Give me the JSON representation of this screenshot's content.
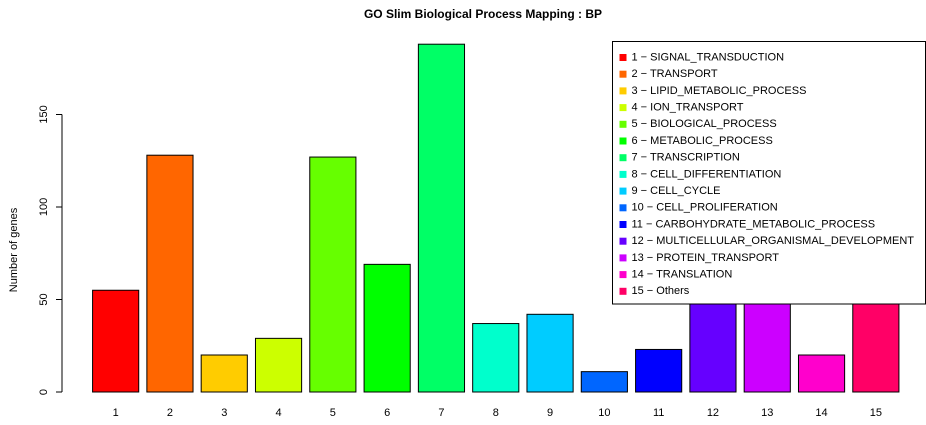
{
  "chart_data": {
    "type": "bar",
    "title": "GO Slim Biological Process Mapping  : BP",
    "y_label": "Number of genes",
    "categories": [
      "1",
      "2",
      "3",
      "4",
      "5",
      "6",
      "7",
      "8",
      "9",
      "10",
      "11",
      "12",
      "13",
      "14",
      "15"
    ],
    "values": [
      55,
      128,
      20,
      29,
      127,
      69,
      188,
      37,
      42,
      11,
      23,
      50,
      55,
      20,
      59
    ],
    "colors": [
      "#FF0000",
      "#FF6600",
      "#FFCC00",
      "#CCFF00",
      "#66FF00",
      "#00FF00",
      "#00FF66",
      "#00FFCC",
      "#00CCFF",
      "#0066FF",
      "#0000FF",
      "#6600FF",
      "#CC00FF",
      "#FF00CC",
      "#FF0066"
    ],
    "legend_labels": [
      "1 − SIGNAL_TRANSDUCTION",
      "2 − TRANSPORT",
      "3 − LIPID_METABOLIC_PROCESS",
      "4 − ION_TRANSPORT",
      "5 − BIOLOGICAL_PROCESS",
      "6 − METABOLIC_PROCESS",
      "7 − TRANSCRIPTION",
      "8 − CELL_DIFFERENTIATION",
      "9 − CELL_CYCLE",
      "10 − CELL_PROLIFERATION",
      "11 − CARBOHYDRATE_METABOLIC_PROCESS",
      "12 − MULTICELLULAR_ORGANISMAL_DEVELOPMENT",
      "13 − PROTEIN_TRANSPORT",
      "14 − TRANSLATION",
      "15 − Others"
    ],
    "legend_position": "topright",
    "ylim": [
      0,
      190
    ],
    "yticks": [
      0,
      50,
      100,
      150
    ],
    "grid": false
  }
}
